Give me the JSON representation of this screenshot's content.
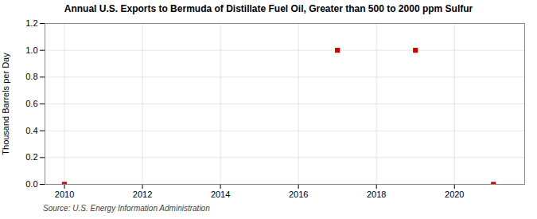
{
  "chart_data": {
    "type": "scatter",
    "title": "Annual U.S. Exports to Bermuda of Distillate Fuel Oil, Greater than 500 to 2000 ppm Sulfur",
    "ylabel": "Thousand Barrels per Day",
    "source": "Source: U.S. Energy Information Administration",
    "x": [
      2010,
      2017,
      2019,
      2021
    ],
    "values": [
      0.0,
      1.0,
      1.0,
      0.0
    ],
    "color": "#cc0000",
    "marker": "square",
    "xlim": [
      2009.5,
      2021.8
    ],
    "xticks": [
      2010,
      2012,
      2014,
      2016,
      2018,
      2020
    ],
    "ylim": [
      0.0,
      1.2
    ],
    "yticks": [
      {
        "value": 0.0,
        "label": "0.0"
      },
      {
        "value": 0.2,
        "label": "0.2"
      },
      {
        "value": 0.4,
        "label": "0.4"
      },
      {
        "value": 0.6,
        "label": "0.6"
      },
      {
        "value": 0.8,
        "label": "0.8"
      },
      {
        "value": 1.0,
        "label": "1.0"
      },
      {
        "value": 1.2,
        "label": "1.2"
      }
    ],
    "grid": true
  }
}
